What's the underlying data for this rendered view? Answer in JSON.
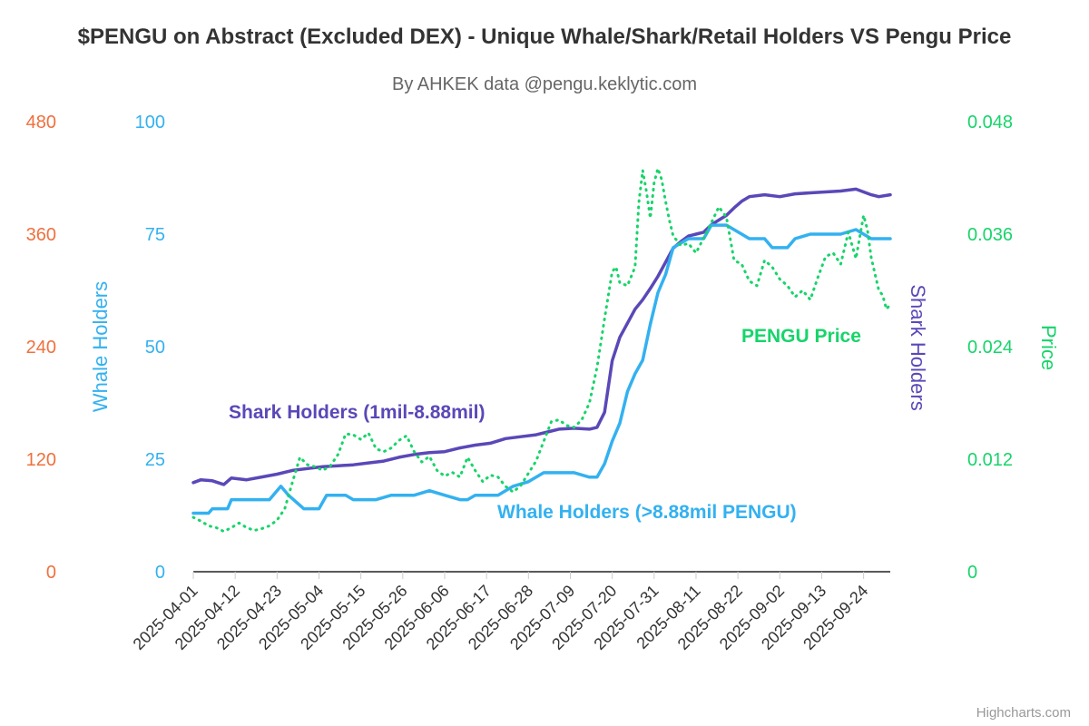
{
  "chart_data": {
    "type": "line",
    "title": "$PENGU on Abstract (Excluded DEX) - Unique Whale/Shark/Retail Holders VS Pengu Price",
    "subtitle": "By AHKEK data @pengu.keklytic.com",
    "credits": "Highcharts.com",
    "x_tick_labels": [
      "2025-04-01",
      "2025-04-12",
      "2025-04-23",
      "2025-05-04",
      "2025-05-15",
      "2025-05-26",
      "2025-06-06",
      "2025-06-17",
      "2025-06-28",
      "2025-07-09",
      "2025-07-20",
      "2025-07-31",
      "2025-08-11",
      "2025-08-22",
      "2025-09-02",
      "2025-09-13",
      "2025-09-24"
    ],
    "x_days_range": [
      0,
      183
    ],
    "axes": {
      "shark": {
        "title": "Shark Holders",
        "range": [
          0,
          480
        ],
        "ticks": [
          "0",
          "120",
          "240",
          "360",
          "480"
        ],
        "tick_values": [
          0,
          120,
          240,
          360,
          480
        ],
        "color": "#f0703d"
      },
      "whale": {
        "title": "Whale Holders",
        "range": [
          0,
          100
        ],
        "ticks": [
          "0",
          "25",
          "50",
          "75",
          "100"
        ],
        "tick_values": [
          0,
          25,
          50,
          75,
          100
        ],
        "color": "#33b1f0"
      },
      "price": {
        "title": "Price",
        "range": [
          0,
          0.048
        ],
        "ticks": [
          "0",
          "0.012",
          "0.024",
          "0.036",
          "0.048"
        ],
        "tick_values": [
          0,
          0.012,
          0.024,
          0.036,
          0.048
        ],
        "color": "#17d46a"
      }
    },
    "series": [
      {
        "name": "Shark Holders (1mil-8.88mil)",
        "axis": "shark",
        "color": "#5a48b8",
        "style": "solid",
        "points": [
          [
            0,
            95
          ],
          [
            2,
            98
          ],
          [
            5,
            97
          ],
          [
            8,
            93
          ],
          [
            10,
            100
          ],
          [
            14,
            98
          ],
          [
            18,
            101
          ],
          [
            22,
            104
          ],
          [
            26,
            108
          ],
          [
            30,
            110
          ],
          [
            34,
            112
          ],
          [
            38,
            113
          ],
          [
            42,
            114
          ],
          [
            46,
            116
          ],
          [
            50,
            118
          ],
          [
            54,
            122
          ],
          [
            58,
            125
          ],
          [
            62,
            127
          ],
          [
            66,
            128
          ],
          [
            70,
            132
          ],
          [
            74,
            135
          ],
          [
            78,
            137
          ],
          [
            82,
            142
          ],
          [
            86,
            144
          ],
          [
            90,
            146
          ],
          [
            94,
            150
          ],
          [
            96,
            152
          ],
          [
            100,
            153
          ],
          [
            104,
            152
          ],
          [
            106,
            154
          ],
          [
            108,
            170
          ],
          [
            110,
            225
          ],
          [
            112,
            250
          ],
          [
            114,
            265
          ],
          [
            116,
            280
          ],
          [
            118,
            290
          ],
          [
            120,
            302
          ],
          [
            122,
            315
          ],
          [
            124,
            330
          ],
          [
            126,
            345
          ],
          [
            128,
            352
          ],
          [
            130,
            358
          ],
          [
            132,
            360
          ],
          [
            134,
            362
          ],
          [
            136,
            370
          ],
          [
            138,
            375
          ],
          [
            140,
            380
          ],
          [
            142,
            388
          ],
          [
            144,
            395
          ],
          [
            146,
            400
          ],
          [
            150,
            402
          ],
          [
            154,
            400
          ],
          [
            158,
            403
          ],
          [
            162,
            404
          ],
          [
            166,
            405
          ],
          [
            170,
            406
          ],
          [
            174,
            408
          ],
          [
            176,
            405
          ],
          [
            178,
            402
          ],
          [
            180,
            400
          ],
          [
            183,
            402
          ]
        ]
      },
      {
        "name": "Whale Holders (>8.88mil PENGU)",
        "axis": "whale",
        "color": "#33b1f0",
        "style": "solid",
        "points": [
          [
            0,
            13
          ],
          [
            4,
            13
          ],
          [
            5,
            14
          ],
          [
            9,
            14
          ],
          [
            10,
            16
          ],
          [
            20,
            16
          ],
          [
            23,
            19
          ],
          [
            25,
            17
          ],
          [
            29,
            14
          ],
          [
            33,
            14
          ],
          [
            35,
            17
          ],
          [
            40,
            17
          ],
          [
            42,
            16
          ],
          [
            48,
            16
          ],
          [
            52,
            17
          ],
          [
            58,
            17
          ],
          [
            62,
            18
          ],
          [
            66,
            17
          ],
          [
            70,
            16
          ],
          [
            72,
            16
          ],
          [
            74,
            17
          ],
          [
            80,
            17
          ],
          [
            84,
            19
          ],
          [
            88,
            20
          ],
          [
            92,
            22
          ],
          [
            96,
            22
          ],
          [
            100,
            22
          ],
          [
            104,
            21
          ],
          [
            106,
            21
          ],
          [
            108,
            24
          ],
          [
            110,
            29
          ],
          [
            112,
            33
          ],
          [
            114,
            40
          ],
          [
            116,
            44
          ],
          [
            118,
            47
          ],
          [
            120,
            55
          ],
          [
            122,
            62
          ],
          [
            124,
            66
          ],
          [
            126,
            72
          ],
          [
            128,
            73
          ],
          [
            130,
            74
          ],
          [
            132,
            74
          ],
          [
            134,
            74
          ],
          [
            136,
            77
          ],
          [
            138,
            77
          ],
          [
            140,
            77
          ],
          [
            144,
            75
          ],
          [
            146,
            74
          ],
          [
            150,
            74
          ],
          [
            152,
            72
          ],
          [
            156,
            72
          ],
          [
            158,
            74
          ],
          [
            162,
            75
          ],
          [
            166,
            75
          ],
          [
            170,
            75
          ],
          [
            174,
            76
          ],
          [
            176,
            75
          ],
          [
            178,
            74
          ],
          [
            180,
            74
          ],
          [
            183,
            74
          ]
        ]
      },
      {
        "name": "PENGU Price",
        "axis": "price",
        "color": "#17d46a",
        "style": "dotted",
        "points": [
          [
            0,
            0.0058
          ],
          [
            2,
            0.0054
          ],
          [
            4,
            0.0049
          ],
          [
            6,
            0.0047
          ],
          [
            8,
            0.0043
          ],
          [
            10,
            0.0047
          ],
          [
            12,
            0.0052
          ],
          [
            14,
            0.0047
          ],
          [
            16,
            0.0044
          ],
          [
            18,
            0.0046
          ],
          [
            20,
            0.0049
          ],
          [
            22,
            0.0055
          ],
          [
            24,
            0.0067
          ],
          [
            26,
            0.0095
          ],
          [
            28,
            0.0122
          ],
          [
            30,
            0.0114
          ],
          [
            32,
            0.0112
          ],
          [
            34,
            0.0108
          ],
          [
            36,
            0.0113
          ],
          [
            38,
            0.0125
          ],
          [
            40,
            0.0147
          ],
          [
            42,
            0.0146
          ],
          [
            44,
            0.0141
          ],
          [
            46,
            0.0148
          ],
          [
            48,
            0.0131
          ],
          [
            50,
            0.0128
          ],
          [
            52,
            0.0132
          ],
          [
            54,
            0.014
          ],
          [
            56,
            0.0145
          ],
          [
            58,
            0.0128
          ],
          [
            60,
            0.0117
          ],
          [
            62,
            0.0123
          ],
          [
            64,
            0.0108
          ],
          [
            66,
            0.0102
          ],
          [
            68,
            0.0106
          ],
          [
            70,
            0.0101
          ],
          [
            72,
            0.0122
          ],
          [
            74,
            0.0108
          ],
          [
            76,
            0.0096
          ],
          [
            78,
            0.0103
          ],
          [
            80,
            0.0101
          ],
          [
            82,
            0.0091
          ],
          [
            84,
            0.0085
          ],
          [
            86,
            0.0092
          ],
          [
            88,
            0.0105
          ],
          [
            90,
            0.0118
          ],
          [
            92,
            0.0139
          ],
          [
            94,
            0.016
          ],
          [
            96,
            0.0162
          ],
          [
            98,
            0.0156
          ],
          [
            100,
            0.0154
          ],
          [
            102,
            0.0162
          ],
          [
            104,
            0.018
          ],
          [
            106,
            0.0218
          ],
          [
            108,
            0.027
          ],
          [
            110,
            0.032
          ],
          [
            111,
            0.0325
          ],
          [
            112,
            0.0308
          ],
          [
            114,
            0.0305
          ],
          [
            116,
            0.0325
          ],
          [
            117,
            0.0394
          ],
          [
            118,
            0.0428
          ],
          [
            119,
            0.0405
          ],
          [
            120,
            0.0377
          ],
          [
            121,
            0.0415
          ],
          [
            122,
            0.043
          ],
          [
            123,
            0.0418
          ],
          [
            124,
            0.0395
          ],
          [
            125,
            0.0375
          ],
          [
            126,
            0.0358
          ],
          [
            128,
            0.0348
          ],
          [
            130,
            0.035
          ],
          [
            132,
            0.034
          ],
          [
            134,
            0.0356
          ],
          [
            136,
            0.0372
          ],
          [
            138,
            0.0389
          ],
          [
            140,
            0.0378
          ],
          [
            142,
            0.0332
          ],
          [
            144,
            0.0328
          ],
          [
            146,
            0.031
          ],
          [
            148,
            0.0305
          ],
          [
            150,
            0.0332
          ],
          [
            152,
            0.0325
          ],
          [
            154,
            0.0312
          ],
          [
            156,
            0.0305
          ],
          [
            158,
            0.0293
          ],
          [
            160,
            0.03
          ],
          [
            162,
            0.029
          ],
          [
            164,
            0.0314
          ],
          [
            166,
            0.0336
          ],
          [
            168,
            0.034
          ],
          [
            170,
            0.0328
          ],
          [
            172,
            0.0362
          ],
          [
            174,
            0.0334
          ],
          [
            176,
            0.038
          ],
          [
            177,
            0.0365
          ],
          [
            178,
            0.0335
          ],
          [
            180,
            0.03
          ],
          [
            181,
            0.0295
          ],
          [
            182,
            0.028
          ],
          [
            183,
            0.0285
          ]
        ]
      }
    ],
    "labels": {
      "shark": "Shark Holders (1mil-8.88mil)",
      "whale": "Whale Holders (>8.88mil PENGU)",
      "price": "PENGU Price"
    }
  }
}
